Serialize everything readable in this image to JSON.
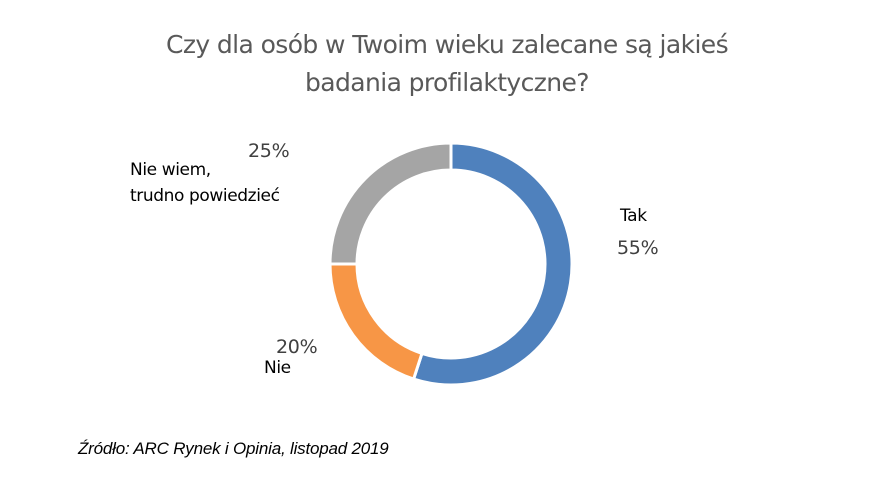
{
  "chart": {
    "title_line1": "Czy dla osób w Twoim wieku zalecane są jakieś",
    "title_line2": "badania profilaktyczne?",
    "source": "Źródło: ARC Rynek i Opinia, listopad 2019"
  },
  "labels": {
    "tak": {
      "category": "Tak",
      "percent": "55%"
    },
    "nie": {
      "category": "Nie",
      "percent": "20%"
    },
    "nie_wiem": {
      "category_line1": "Nie wiem,",
      "category_line2": "trudno powiedzieć",
      "percent": "25%"
    }
  },
  "colors": {
    "tak": "#4f81bd",
    "nie": "#f79646",
    "nie_wiem": "#a5a5a5"
  },
  "chart_data": {
    "type": "pie",
    "subtype": "donut",
    "title": "Czy dla osób w Twoim wieku zalecane są jakieś badania profilaktyczne?",
    "categories": [
      "Tak",
      "Nie",
      "Nie wiem, trudno powiedzieć"
    ],
    "values": [
      55,
      20,
      25
    ],
    "unit": "%",
    "colors": [
      "#4f81bd",
      "#f79646",
      "#a5a5a5"
    ],
    "start_angle": "12 o'clock, clockwise",
    "legend": "none (data labels beside slices)",
    "annotation": "Źródło: ARC Rynek i Opinia, listopad 2019"
  }
}
